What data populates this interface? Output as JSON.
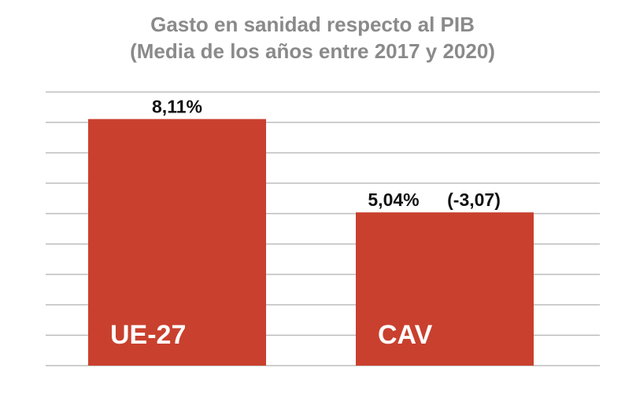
{
  "chart_data": {
    "type": "bar",
    "title": "Gasto en sanidad respecto al PIB",
    "subtitle": "(Media de los años entre 2017 y 2020)",
    "categories": [
      "UE-27",
      "CAV"
    ],
    "values": [
      8.11,
      5.04
    ],
    "data_labels": [
      "8,11%",
      "5,04%"
    ],
    "annotations": [
      "",
      "(-3,07)"
    ],
    "ylim": [
      0,
      9
    ],
    "grid": true,
    "xlabel": "",
    "ylabel": "",
    "bar_color": "#C9402E"
  }
}
